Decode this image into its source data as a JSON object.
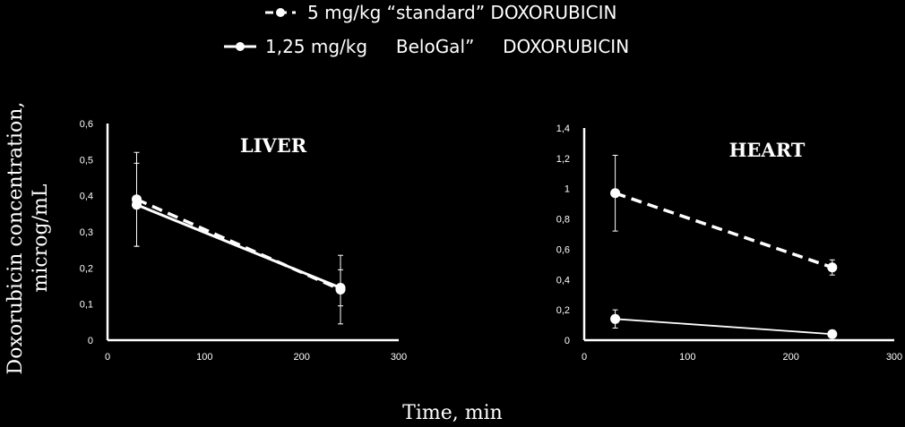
{
  "legend": {
    "series1_label": "5 mg/kg “standard” DOXORUBICIN",
    "series2_label": "1,25 mg/kg     BeloGal”     DOXORUBICIN"
  },
  "axes": {
    "ylabel_line1": "Doxorubicin concentration,",
    "ylabel_line2": "microg/mL",
    "xlabel": "Time, min"
  },
  "chart_data": [
    {
      "type": "line",
      "title": "LIVER",
      "xlim": [
        0,
        300
      ],
      "ylim": [
        0,
        0.6
      ],
      "x_ticks": [
        "0",
        "100",
        "200",
        "300"
      ],
      "y_ticks": [
        "0",
        "0,1",
        "0,2",
        "0,3",
        "0,4",
        "0,5",
        "0,6"
      ],
      "series": [
        {
          "name": "5 mg/kg “standard” DOXORUBICIN",
          "style": "dashed",
          "x": [
            30,
            240
          ],
          "y": [
            0.39,
            0.14
          ],
          "err": [
            0.13,
            0.095
          ]
        },
        {
          "name": "1,25 mg/kg     BeloGal”     DOXORUBICIN",
          "style": "solid",
          "x": [
            30,
            240
          ],
          "y": [
            0.375,
            0.145
          ],
          "err": [
            0.115,
            0.05
          ]
        }
      ]
    },
    {
      "type": "line",
      "title": "HEART",
      "xlim": [
        0,
        300
      ],
      "ylim": [
        0,
        1.4
      ],
      "x_ticks": [
        "0",
        "100",
        "200",
        "300"
      ],
      "y_ticks": [
        "0",
        "0,2",
        "0,4",
        "0,6",
        "0,8",
        "1",
        "1,2",
        "1,4"
      ],
      "series": [
        {
          "name": "5 mg/kg “standard” DOXORUBICIN",
          "style": "dashed",
          "x": [
            30,
            240
          ],
          "y": [
            0.97,
            0.48
          ],
          "err": [
            0.25,
            0.05
          ]
        },
        {
          "name": "1,25 mg/kg     BeloGal”     DOXORUBICIN",
          "style": "solid",
          "x": [
            30,
            240
          ],
          "y": [
            0.14,
            0.04
          ],
          "err": [
            0.06,
            0.0
          ]
        }
      ]
    }
  ],
  "colors": {
    "background": "#000000",
    "foreground": "#ffffff"
  }
}
